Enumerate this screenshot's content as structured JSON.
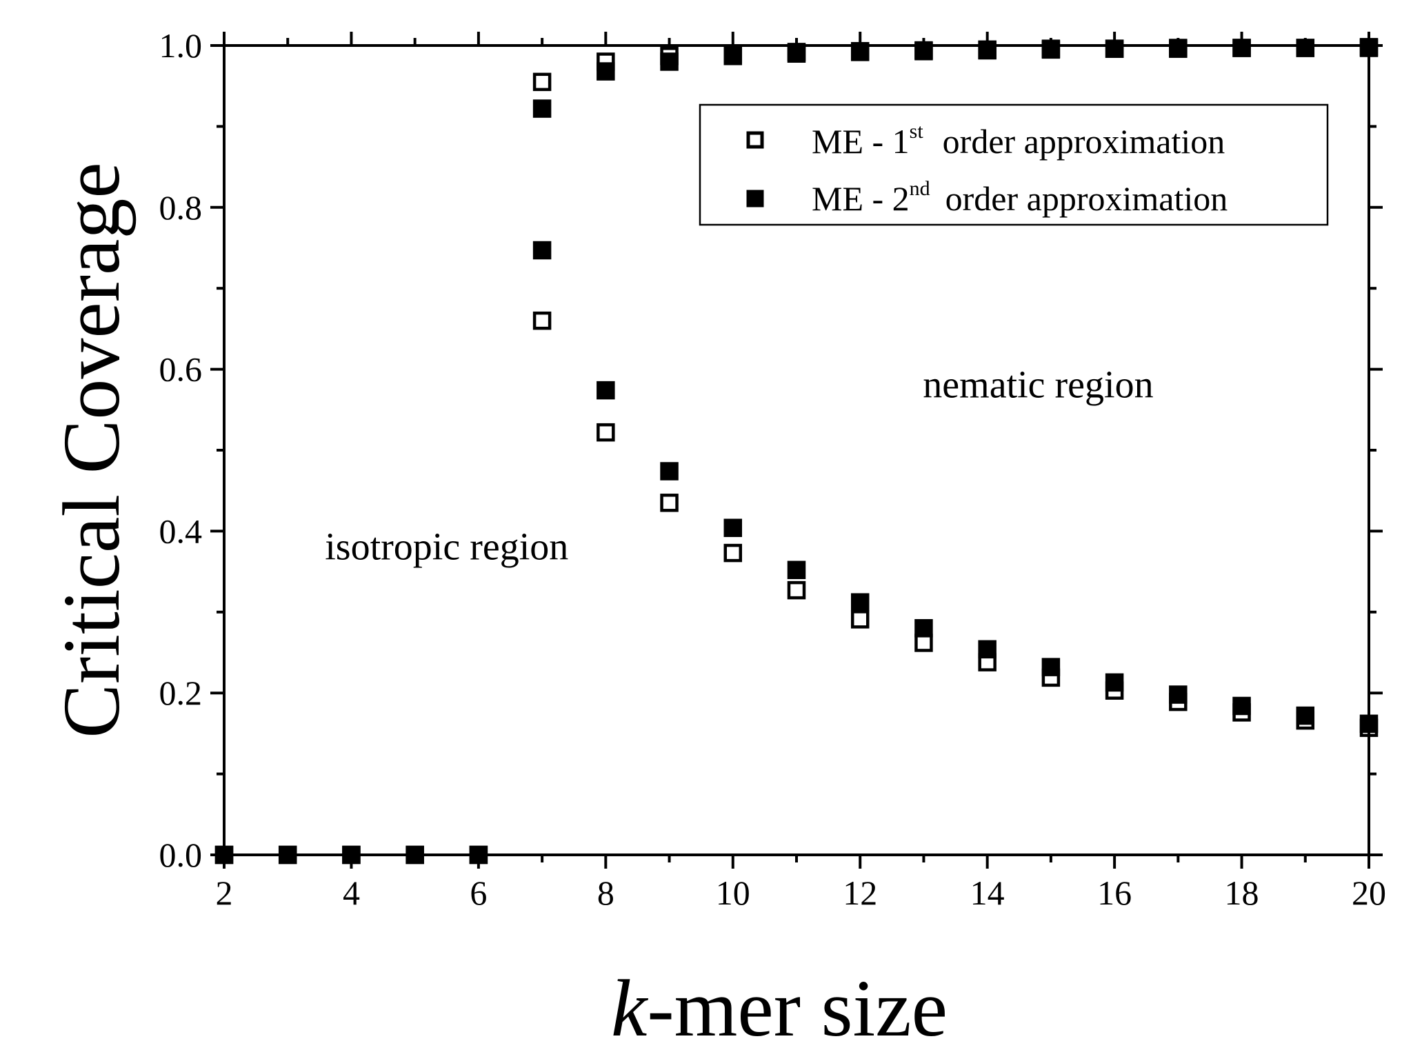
{
  "chart_data": {
    "type": "scatter",
    "xlabel_italic": "k",
    "xlabel_rest": "-mer size",
    "ylabel": "Critical Coverage",
    "xlim": [
      2,
      20
    ],
    "ylim": [
      0.0,
      1.0
    ],
    "xticks": [
      "2",
      "4",
      "6",
      "8",
      "10",
      "12",
      "14",
      "16",
      "18",
      "20"
    ],
    "yticks": [
      "0.0",
      "0.2",
      "0.4",
      "0.6",
      "0.8",
      "1.0"
    ],
    "legend_position": "top-right",
    "grid": false,
    "series": [
      {
        "name": "ME - 1st order approximation",
        "legend_main": "ME - 1",
        "legend_sup": "st",
        "legend_rest": "order approximation",
        "marker": "open-square",
        "lower": [
          {
            "x": 2,
            "y": 0.0
          },
          {
            "x": 3,
            "y": 0.0
          },
          {
            "x": 4,
            "y": 0.0
          },
          {
            "x": 5,
            "y": 0.0
          },
          {
            "x": 6,
            "y": 0.0
          },
          {
            "x": 7,
            "y": 0.66
          },
          {
            "x": 8,
            "y": 0.522
          },
          {
            "x": 9,
            "y": 0.435
          },
          {
            "x": 10,
            "y": 0.373
          },
          {
            "x": 11,
            "y": 0.327
          },
          {
            "x": 12,
            "y": 0.291
          },
          {
            "x": 13,
            "y": 0.262
          },
          {
            "x": 14,
            "y": 0.238
          },
          {
            "x": 15,
            "y": 0.219
          },
          {
            "x": 16,
            "y": 0.203
          },
          {
            "x": 17,
            "y": 0.189
          },
          {
            "x": 18,
            "y": 0.176
          },
          {
            "x": 19,
            "y": 0.166
          },
          {
            "x": 20,
            "y": 0.157
          }
        ],
        "upper": [
          {
            "x": 7,
            "y": 0.955
          },
          {
            "x": 8,
            "y": 0.98
          },
          {
            "x": 9,
            "y": 0.987
          },
          {
            "x": 10,
            "y": 0.99
          },
          {
            "x": 11,
            "y": 0.992
          },
          {
            "x": 12,
            "y": 0.993
          },
          {
            "x": 13,
            "y": 0.994
          },
          {
            "x": 14,
            "y": 0.995
          },
          {
            "x": 15,
            "y": 0.996
          },
          {
            "x": 16,
            "y": 0.996
          },
          {
            "x": 17,
            "y": 0.997
          },
          {
            "x": 18,
            "y": 0.997
          },
          {
            "x": 19,
            "y": 0.997
          },
          {
            "x": 20,
            "y": 0.998
          }
        ]
      },
      {
        "name": "ME - 2nd order approximation",
        "legend_main": "ME - 2",
        "legend_sup": "nd",
        "legend_rest": "order approximation",
        "marker": "filled-square",
        "lower": [
          {
            "x": 2,
            "y": 0.0
          },
          {
            "x": 3,
            "y": 0.0
          },
          {
            "x": 4,
            "y": 0.0
          },
          {
            "x": 5,
            "y": 0.0
          },
          {
            "x": 6,
            "y": 0.0
          },
          {
            "x": 7,
            "y": 0.747
          },
          {
            "x": 8,
            "y": 0.574
          },
          {
            "x": 9,
            "y": 0.474
          },
          {
            "x": 10,
            "y": 0.404
          },
          {
            "x": 11,
            "y": 0.352
          },
          {
            "x": 12,
            "y": 0.312
          },
          {
            "x": 13,
            "y": 0.28
          },
          {
            "x": 14,
            "y": 0.254
          },
          {
            "x": 15,
            "y": 0.232
          },
          {
            "x": 16,
            "y": 0.213
          },
          {
            "x": 17,
            "y": 0.198
          },
          {
            "x": 18,
            "y": 0.184
          },
          {
            "x": 19,
            "y": 0.172
          },
          {
            "x": 20,
            "y": 0.162
          }
        ],
        "upper": [
          {
            "x": 7,
            "y": 0.922
          },
          {
            "x": 8,
            "y": 0.968
          },
          {
            "x": 9,
            "y": 0.98
          },
          {
            "x": 10,
            "y": 0.987
          },
          {
            "x": 11,
            "y": 0.99
          },
          {
            "x": 12,
            "y": 0.992
          },
          {
            "x": 13,
            "y": 0.993
          },
          {
            "x": 14,
            "y": 0.994
          },
          {
            "x": 15,
            "y": 0.995
          },
          {
            "x": 16,
            "y": 0.996
          },
          {
            "x": 17,
            "y": 0.996
          },
          {
            "x": 18,
            "y": 0.997
          },
          {
            "x": 19,
            "y": 0.997
          },
          {
            "x": 20,
            "y": 0.997
          }
        ]
      }
    ],
    "annotations": [
      {
        "text": "isotropic region",
        "x": 5.5,
        "y": 0.365
      },
      {
        "text": "nematic region",
        "x": 14.8,
        "y": 0.565
      }
    ]
  }
}
